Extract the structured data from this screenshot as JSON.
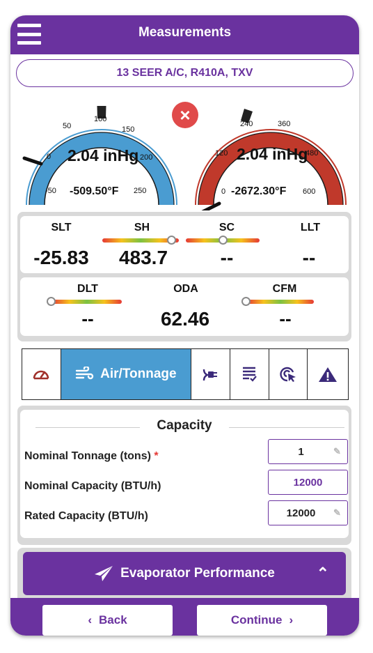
{
  "header": {
    "title": "Measurements"
  },
  "system": {
    "label": "13 SEER A/C, R410A, TXV"
  },
  "gauges": {
    "low": {
      "pressure": "2.04 inHg",
      "temperature": "-509.50°F",
      "ticks": [
        "-50",
        "0",
        "50",
        "100",
        "150",
        "200",
        "250"
      ],
      "color": "#4a9cd1"
    },
    "high": {
      "pressure": "2.04 inHg",
      "temperature": "-2672.30°F",
      "ticks": [
        "0",
        "120",
        "240",
        "360",
        "480",
        "600"
      ],
      "color": "#c0392b"
    },
    "clear_icon": "close-circle-icon"
  },
  "readings": {
    "row1": [
      {
        "label": "SLT",
        "value": "-25.83"
      },
      {
        "label": "SH",
        "value": "483.7"
      },
      {
        "label": "SC",
        "value": "--"
      },
      {
        "label": "LLT",
        "value": "--"
      }
    ],
    "row2": [
      {
        "label": "DLT",
        "value": "--"
      },
      {
        "label": "ODA",
        "value": "62.46"
      },
      {
        "label": "CFM",
        "value": "--"
      }
    ]
  },
  "tabs": [
    {
      "icon": "gauge-icon"
    },
    {
      "icon": "airflow-icon",
      "label": "Air/Tonnage",
      "active": true
    },
    {
      "icon": "electrical-icon"
    },
    {
      "icon": "checklist-icon"
    },
    {
      "icon": "target-cursor-icon"
    },
    {
      "icon": "warning-icon"
    }
  ],
  "capacity": {
    "title": "Capacity",
    "rows": [
      {
        "label": "Nominal Tonnage (tons)",
        "required": "*",
        "value": "1"
      },
      {
        "label": "Nominal Capacity (BTU/h)",
        "value": "12000"
      },
      {
        "label": "Rated Capacity (BTU/h)",
        "value": "12000"
      }
    ]
  },
  "evaporator": {
    "label": "Evaporator Performance",
    "icon": "paper-plane-icon"
  },
  "footer": {
    "back_label": "Back",
    "continue_label": "Continue"
  },
  "colors": {
    "primary": "#6a329f",
    "accent": "#4a9cd1",
    "danger": "#e04a4a"
  }
}
